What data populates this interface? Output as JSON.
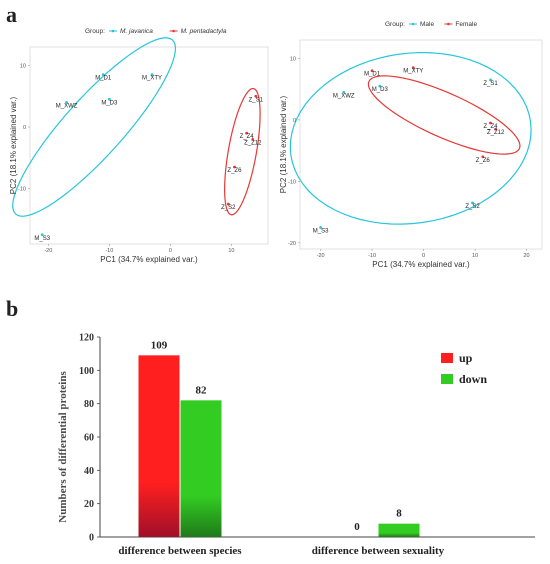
{
  "panel_labels": {
    "a": "a",
    "b": "b"
  },
  "chart_data": [
    {
      "type": "scatter",
      "legend_title": "Group:",
      "legend": [
        {
          "name": "M. javanica",
          "color": "#26c6da"
        },
        {
          "name": "M. pentadactyla",
          "color": "#e53935"
        }
      ],
      "legend_position": "top",
      "xlabel": "PC1 (34.7% explained var.)",
      "ylabel": "PC2 (18.1% explained var.)",
      "xlim": [
        -23,
        16
      ],
      "ylim": [
        -19,
        13
      ],
      "xticks": [
        -20,
        -10,
        0,
        10
      ],
      "yticks": [
        10,
        0,
        -10
      ],
      "grid": false,
      "points": [
        {
          "label": "M_D1",
          "x": -11,
          "y": 8.5,
          "group": 0
        },
        {
          "label": "M_XTY",
          "x": -3,
          "y": 8.5,
          "group": 0
        },
        {
          "label": "M_D3",
          "x": -10,
          "y": 4.5,
          "group": 0
        },
        {
          "label": "M_XWZ",
          "x": -17,
          "y": 4,
          "group": 0
        },
        {
          "label": "M_S3",
          "x": -21,
          "y": -17.5,
          "group": 0
        },
        {
          "label": "Z_S1",
          "x": 14,
          "y": 5,
          "group": 1
        },
        {
          "label": "Z_Z4",
          "x": 12.5,
          "y": -1,
          "group": 1
        },
        {
          "label": "Z_Z12",
          "x": 13.5,
          "y": -2,
          "group": 1
        },
        {
          "label": "Z_Z6",
          "x": 10.5,
          "y": -6.5,
          "group": 1
        },
        {
          "label": "Z_S2",
          "x": 9.5,
          "y": -12.5,
          "group": 1
        }
      ],
      "ellipses": [
        {
          "group": 0,
          "cx": -12.5,
          "cy": 0,
          "rx": 19.2,
          "ry": 4.8,
          "angle": 48
        },
        {
          "group": 1,
          "cx": 11.8,
          "cy": -4,
          "rx": 10.5,
          "ry": 2.3,
          "angle": 80
        }
      ]
    },
    {
      "type": "scatter",
      "legend_title": "Group:",
      "legend": [
        {
          "name": "Male",
          "color": "#26c6da"
        },
        {
          "name": "Female",
          "color": "#e53935"
        }
      ],
      "legend_position": "top",
      "xlabel": "PC1 (34.7% explained var.)",
      "ylabel": "PC2 (18.1% explained var.)",
      "xlim": [
        -24,
        23
      ],
      "ylim": [
        -21,
        13
      ],
      "xticks": [
        -20,
        -10,
        0,
        10,
        20
      ],
      "yticks": [
        10,
        0,
        -10,
        -20
      ],
      "grid": false,
      "points": [
        {
          "label": "M_D1",
          "x": -10,
          "y": 8,
          "group": 1
        },
        {
          "label": "M_XTY",
          "x": -2,
          "y": 8.5,
          "group": 1
        },
        {
          "label": "M_D3",
          "x": -8.5,
          "y": 5.5,
          "group": 0
        },
        {
          "label": "M_XWZ",
          "x": -15.5,
          "y": 4.5,
          "group": 0
        },
        {
          "label": "Z_S1",
          "x": 13,
          "y": 6.5,
          "group": 0
        },
        {
          "label": "Z_Z4",
          "x": 13,
          "y": -0.5,
          "group": 1
        },
        {
          "label": "Z_Z12",
          "x": 14,
          "y": -1.5,
          "group": 1
        },
        {
          "label": "Z_Z6",
          "x": 11.5,
          "y": -6,
          "group": 1
        },
        {
          "label": "Z_S2",
          "x": 9.5,
          "y": -13.5,
          "group": 0
        },
        {
          "label": "M_S3",
          "x": -20,
          "y": -17.5,
          "group": 0
        }
      ],
      "ellipses": [
        {
          "group": 0,
          "cx": -2.5,
          "cy": -3,
          "rx": 23.5,
          "ry": 16.5,
          "angle": 8
        },
        {
          "group": 1,
          "cx": 4,
          "cy": 0.8,
          "rx": 16,
          "ry": 4.3,
          "angle": -24
        }
      ]
    },
    {
      "type": "bar",
      "ylabel": "Numbers of differential proteins",
      "ylim": [
        0,
        120
      ],
      "yticks": [
        0,
        20,
        40,
        60,
        80,
        100,
        120
      ],
      "categories": [
        "difference between species",
        "difference between sexuality"
      ],
      "series": [
        {
          "name": "up",
          "values": [
            109,
            0
          ],
          "color": "#ff1f1f",
          "dark": "#a0102a"
        },
        {
          "name": "down",
          "values": [
            82,
            8
          ],
          "color": "#33cc22",
          "dark": "#1f7a1a"
        }
      ],
      "legend_position": "top-right",
      "grid": false
    }
  ]
}
